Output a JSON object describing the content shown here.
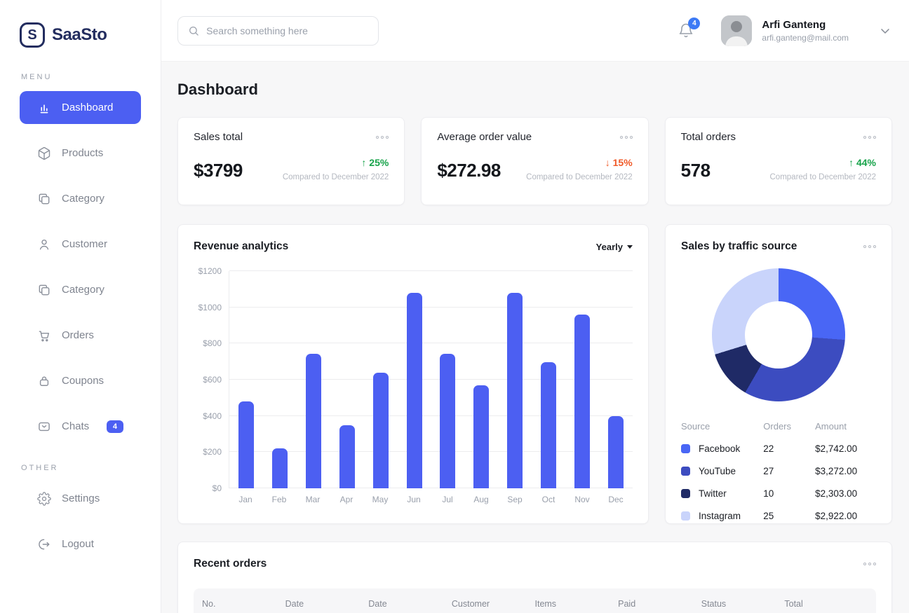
{
  "brand": {
    "name": "SaaSto",
    "initial": "S"
  },
  "sidebar": {
    "menu_label": "MENU",
    "other_label": "OTHER",
    "items": [
      {
        "label": "Dashboard",
        "icon": "dashboard",
        "active": true
      },
      {
        "label": "Products",
        "icon": "products"
      },
      {
        "label": "Category",
        "icon": "category"
      },
      {
        "label": "Customer",
        "icon": "customer"
      },
      {
        "label": "Category",
        "icon": "category"
      },
      {
        "label": "Orders",
        "icon": "orders"
      },
      {
        "label": "Coupons",
        "icon": "coupons"
      },
      {
        "label": "Chats",
        "icon": "chats",
        "badge": "4"
      }
    ],
    "other_items": [
      {
        "label": "Settings",
        "icon": "settings"
      },
      {
        "label": "Logout",
        "icon": "logout"
      }
    ]
  },
  "header": {
    "search_placeholder": "Search something here",
    "notification_count": "4",
    "user": {
      "name": "Arfi Ganteng",
      "email": "arfi.ganteng@mail.com"
    }
  },
  "page": {
    "title": "Dashboard"
  },
  "stats": [
    {
      "label": "Sales total",
      "value": "$3799",
      "change": "25%",
      "direction": "up",
      "compare": "Compared to December 2022"
    },
    {
      "label": "Average order value",
      "value": "$272.98",
      "change": "15%",
      "direction": "down",
      "compare": "Compared to December 2022"
    },
    {
      "label": "Total orders",
      "value": "578",
      "change": "44%",
      "direction": "up",
      "compare": "Compared to December 2022"
    }
  ],
  "revenue": {
    "title": "Revenue analytics",
    "range_label": "Yearly"
  },
  "traffic": {
    "title": "Sales by traffic source",
    "columns": [
      "Source",
      "Orders",
      "Amount"
    ]
  },
  "recent_orders": {
    "title": "Recent orders",
    "columns": [
      "No.",
      "Date",
      "Date",
      "Customer",
      "Items",
      "Paid",
      "Status",
      "Total"
    ]
  },
  "colors": {
    "primary": "#4c5ff2",
    "notification_badge": "#3d7af5",
    "positive": "#17a34a",
    "negative": "#f05a28",
    "logo_navy": "#232d5f"
  },
  "chart_data": [
    {
      "type": "bar",
      "title": "Revenue analytics",
      "categories": [
        "Jan",
        "Feb",
        "Mar",
        "Apr",
        "May",
        "Jun",
        "Jul",
        "Aug",
        "Sep",
        "Oct",
        "Nov",
        "Dec"
      ],
      "values": [
        480,
        220,
        745,
        350,
        640,
        1080,
        745,
        570,
        1080,
        695,
        960,
        400
      ],
      "xlabel": "",
      "ylabel": "",
      "ylim": [
        0,
        1200
      ],
      "ytick_step": 200,
      "ytick_prefix": "$",
      "grid": true,
      "legend": "none",
      "bar_color": "#4c5ff2",
      "range_selected": "Yearly"
    },
    {
      "type": "pie",
      "donut": true,
      "title": "Sales by traffic source",
      "labels": [
        "Facebook",
        "YouTube",
        "Twitter",
        "Instagram"
      ],
      "values": [
        22,
        27,
        10,
        25
      ],
      "amounts": [
        "$2,742.00",
        "$3,272.00",
        "$2,303.00",
        "$2,922.00"
      ],
      "colors": [
        "#4966f5",
        "#3c4cc0",
        "#1f2a66",
        "#c9d4fb"
      ],
      "legend_position": "bottom-table"
    }
  ]
}
